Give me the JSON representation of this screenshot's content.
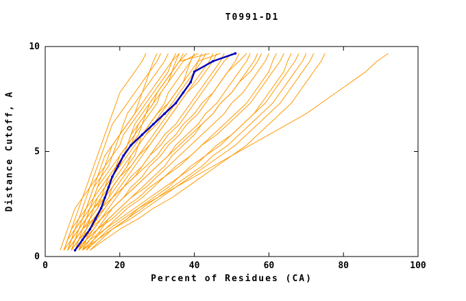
{
  "chart_data": {
    "type": "line",
    "title": "T0991-D1",
    "xlabel": "Percent of Residues (CA)",
    "ylabel": "Distance Cutoff, A",
    "xlim": [
      0,
      100
    ],
    "ylim": [
      0,
      10
    ],
    "xticks": [
      0,
      20,
      40,
      60,
      80,
      100
    ],
    "yticks": [
      0,
      5,
      10
    ],
    "grid": "off",
    "legend": "none",
    "colors": {
      "models": "#ff9900",
      "target": "#0000bb",
      "axis": "#000000"
    },
    "y_grid": [
      0.3,
      0.8,
      1.3,
      1.8,
      2.3,
      2.8,
      3.3,
      3.8,
      4.3,
      4.8,
      5.3,
      5.8,
      6.3,
      6.8,
      7.3,
      7.8,
      8.3,
      8.8,
      9.3,
      9.67
    ],
    "highlight_series": {
      "name": "target-model-curve",
      "x": [
        8,
        10,
        12,
        13.5,
        15,
        16,
        17,
        18,
        19.5,
        21,
        23,
        26,
        29,
        32,
        35,
        37,
        39,
        40,
        45,
        51
      ]
    },
    "model_series_x": [
      [
        5,
        6,
        7,
        8,
        9,
        10,
        11,
        12,
        13,
        14,
        15,
        16,
        17,
        18,
        19,
        20,
        22,
        24,
        26,
        27
      ],
      [
        6,
        7,
        8,
        9,
        10,
        11,
        12,
        13,
        14,
        15,
        16,
        17,
        18,
        20,
        22,
        24,
        26,
        28,
        30,
        31
      ],
      [
        7,
        8,
        9,
        10,
        11,
        12,
        13,
        14,
        16,
        18,
        19,
        20,
        21,
        22,
        24,
        26,
        28,
        30,
        32,
        33
      ],
      [
        5,
        6,
        8,
        10,
        12,
        13,
        14,
        15,
        16,
        17,
        18,
        20,
        22,
        24,
        26,
        28,
        30,
        32,
        34,
        35
      ],
      [
        8,
        9,
        10,
        11,
        12,
        14,
        16,
        18,
        20,
        21,
        22,
        23,
        24,
        26,
        28,
        30,
        32,
        34,
        35,
        36
      ],
      [
        6,
        8,
        10,
        11,
        12,
        13,
        15,
        17,
        19,
        21,
        23,
        25,
        26,
        27,
        28,
        30,
        32,
        34,
        36,
        38
      ],
      [
        9,
        10,
        11,
        12,
        14,
        16,
        18,
        20,
        22,
        24,
        25,
        26,
        28,
        30,
        32,
        33,
        35,
        37,
        39,
        40
      ],
      [
        7,
        8,
        10,
        12,
        14,
        15,
        16,
        18,
        20,
        22,
        24,
        26,
        28,
        30,
        33,
        35,
        37,
        38,
        39,
        40
      ],
      [
        10,
        11,
        12,
        13,
        15,
        17,
        19,
        21,
        23,
        25,
        27,
        29,
        31,
        33,
        35,
        37,
        39,
        40,
        41,
        42
      ],
      [
        6,
        7,
        9,
        11,
        13,
        15,
        17,
        19,
        21,
        23,
        25,
        27,
        30,
        32,
        34,
        36,
        38,
        40,
        42,
        43
      ],
      [
        8,
        10,
        12,
        14,
        16,
        18,
        20,
        22,
        24,
        26,
        28,
        30,
        32,
        34,
        36,
        38,
        40,
        42,
        44,
        45
      ],
      [
        5,
        7,
        9,
        11,
        13,
        16,
        18,
        20,
        23,
        25,
        28,
        30,
        32,
        34,
        36,
        38,
        41,
        43,
        45,
        46
      ],
      [
        9,
        11,
        13,
        15,
        17,
        19,
        21,
        24,
        26,
        28,
        30,
        32,
        35,
        37,
        39,
        41,
        43,
        45,
        47,
        48
      ],
      [
        7,
        9,
        11,
        13,
        16,
        18,
        21,
        23,
        26,
        28,
        31,
        33,
        36,
        38,
        40,
        42,
        44,
        46,
        48,
        50
      ],
      [
        10,
        12,
        14,
        16,
        18,
        21,
        23,
        26,
        28,
        31,
        33,
        36,
        38,
        41,
        43,
        45,
        47,
        49,
        51,
        52
      ],
      [
        6,
        8,
        10,
        13,
        15,
        18,
        21,
        24,
        27,
        30,
        32,
        35,
        37,
        40,
        42,
        45,
        47,
        49,
        52,
        54
      ],
      [
        8,
        10,
        13,
        15,
        18,
        21,
        24,
        27,
        30,
        33,
        35,
        38,
        41,
        43,
        46,
        48,
        50,
        52,
        54,
        55
      ],
      [
        11,
        13,
        15,
        17,
        20,
        23,
        26,
        29,
        32,
        34,
        37,
        40,
        42,
        45,
        47,
        50,
        52,
        54,
        56,
        57
      ],
      [
        7,
        9,
        12,
        15,
        18,
        21,
        24,
        27,
        30,
        33,
        36,
        39,
        42,
        45,
        47,
        50,
        52,
        55,
        57,
        58
      ],
      [
        9,
        11,
        14,
        17,
        20,
        23,
        27,
        30,
        33,
        36,
        39,
        42,
        45,
        48,
        50,
        53,
        55,
        57,
        59,
        60
      ],
      [
        10,
        13,
        16,
        19,
        22,
        26,
        29,
        32,
        36,
        39,
        42,
        45,
        48,
        51,
        54,
        56,
        58,
        60,
        61,
        62
      ],
      [
        8,
        11,
        14,
        18,
        21,
        25,
        28,
        32,
        35,
        39,
        42,
        46,
        49,
        52,
        55,
        57,
        59,
        61,
        63,
        64
      ],
      [
        12,
        15,
        18,
        22,
        25,
        29,
        33,
        36,
        40,
        43,
        47,
        50,
        53,
        56,
        58,
        60,
        62,
        64,
        65,
        66
      ],
      [
        9,
        12,
        16,
        20,
        24,
        28,
        32,
        36,
        39,
        43,
        46,
        50,
        53,
        56,
        59,
        61,
        63,
        65,
        67,
        68
      ],
      [
        11,
        14,
        18,
        22,
        26,
        30,
        34,
        38,
        42,
        45,
        49,
        52,
        55,
        58,
        61,
        63,
        65,
        67,
        69,
        70
      ],
      [
        10,
        14,
        18,
        23,
        27,
        31,
        35,
        39,
        43,
        47,
        51,
        54,
        57,
        60,
        63,
        65,
        67,
        69,
        71,
        72
      ],
      [
        12,
        16,
        20,
        25,
        29,
        34,
        38,
        42,
        46,
        50,
        54,
        57,
        60,
        63,
        66,
        68,
        70,
        72,
        74,
        75
      ],
      [
        11,
        14,
        17,
        21,
        25,
        30,
        35,
        40,
        45,
        50,
        55,
        60,
        65,
        70,
        74,
        78,
        82,
        86,
        89,
        92
      ],
      [
        4,
        5,
        6,
        7,
        8,
        10,
        12,
        14,
        15,
        16,
        18,
        20,
        22,
        24,
        25,
        26,
        27,
        28,
        29,
        30
      ],
      [
        5,
        6,
        7,
        9,
        11,
        12,
        13,
        15,
        17,
        18,
        20,
        21,
        23,
        25,
        27,
        29,
        31,
        33,
        34,
        36
      ],
      [
        7,
        8,
        9,
        11,
        13,
        14,
        16,
        17,
        19,
        20,
        22,
        24,
        25,
        27,
        29,
        31,
        33,
        34,
        36,
        37
      ],
      [
        6,
        7,
        8,
        10,
        11,
        13,
        14,
        16,
        18,
        20,
        22,
        23,
        25,
        27,
        29,
        30,
        32,
        34,
        36,
        44
      ],
      [
        8,
        9,
        11,
        12,
        13,
        15,
        16,
        18,
        19,
        21,
        23,
        24,
        26,
        28,
        30,
        31,
        33,
        35,
        37,
        41
      ],
      [
        9,
        10,
        12,
        14,
        15,
        17,
        18,
        20,
        22,
        23,
        25,
        27,
        29,
        31,
        33,
        35,
        37,
        39,
        41,
        47
      ]
    ]
  }
}
